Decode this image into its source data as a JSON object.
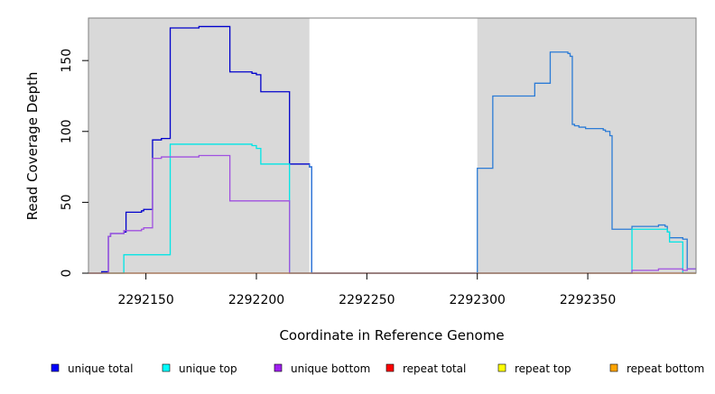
{
  "chart_data": {
    "type": "line",
    "title": "",
    "xlabel": "Coordinate in Reference Genome",
    "ylabel": "Read Coverage Depth",
    "xlim": [
      2292124,
      2292399
    ],
    "ylim": [
      0,
      180
    ],
    "x_ticks": [
      2292150,
      2292200,
      2292250,
      2292300,
      2292350
    ],
    "x_tick_labels": [
      "2292150",
      "2292200",
      "2292250",
      "2292300",
      "2292350"
    ],
    "y_ticks": [
      0,
      50,
      100,
      150
    ],
    "y_tick_labels": [
      "0",
      "50",
      "100",
      "150"
    ],
    "grid": false,
    "shaded_regions": [
      {
        "x_start": 2292124,
        "x_end": 2292224,
        "color": "#d9d9d9"
      },
      {
        "x_start": 2292300,
        "x_end": 2292399,
        "color": "#d9d9d9"
      }
    ],
    "legend": {
      "placement": "bottom",
      "entries": [
        {
          "label": "unique total",
          "color": "#0000ff"
        },
        {
          "label": "unique top",
          "color": "#00ffff"
        },
        {
          "label": "unique bottom",
          "color": "#a020f0"
        },
        {
          "label": "repeat total",
          "color": "#ff0000"
        },
        {
          "label": "repeat top",
          "color": "#ffff00"
        },
        {
          "label": "repeat bottom",
          "color": "#ffa500"
        }
      ]
    },
    "series": [
      {
        "name": "unique total",
        "color": "#0000cc",
        "points": [
          [
            2292124,
            0
          ],
          [
            2292130,
            0
          ],
          [
            2292130,
            1
          ],
          [
            2292133,
            1
          ],
          [
            2292133,
            26
          ],
          [
            2292134,
            26
          ],
          [
            2292134,
            28
          ],
          [
            2292140,
            28
          ],
          [
            2292140,
            29
          ],
          [
            2292141,
            29
          ],
          [
            2292141,
            43
          ],
          [
            2292148,
            43
          ],
          [
            2292148,
            44
          ],
          [
            2292149,
            44
          ],
          [
            2292149,
            45
          ],
          [
            2292153,
            45
          ],
          [
            2292153,
            94
          ],
          [
            2292157,
            94
          ],
          [
            2292157,
            95
          ],
          [
            2292161,
            95
          ],
          [
            2292161,
            173
          ],
          [
            2292174,
            173
          ],
          [
            2292174,
            174
          ],
          [
            2292188,
            174
          ],
          [
            2292188,
            142
          ],
          [
            2292198,
            142
          ],
          [
            2292198,
            141
          ],
          [
            2292200,
            141
          ],
          [
            2292200,
            140
          ],
          [
            2292202,
            140
          ],
          [
            2292202,
            128
          ],
          [
            2292215,
            128
          ],
          [
            2292215,
            77
          ],
          [
            2292224,
            77
          ],
          [
            2292224,
            75
          ],
          [
            2292225,
            75
          ],
          [
            2292225,
            0
          ],
          [
            2292300,
            0
          ]
        ]
      },
      {
        "name": "",
        "color": "#2b7bd6",
        "points": [
          [
            2292224,
            77
          ],
          [
            2292224,
            75
          ],
          [
            2292225,
            75
          ],
          [
            2292225,
            0
          ],
          [
            2292300,
            0
          ],
          [
            2292300,
            74
          ],
          [
            2292307,
            74
          ],
          [
            2292307,
            125
          ],
          [
            2292326,
            125
          ],
          [
            2292326,
            134
          ],
          [
            2292333,
            134
          ],
          [
            2292333,
            156
          ],
          [
            2292341,
            156
          ],
          [
            2292341,
            155
          ],
          [
            2292342,
            155
          ],
          [
            2292342,
            153
          ],
          [
            2292343,
            153
          ],
          [
            2292343,
            105
          ],
          [
            2292344,
            105
          ],
          [
            2292344,
            104
          ],
          [
            2292346,
            104
          ],
          [
            2292346,
            103
          ],
          [
            2292349,
            103
          ],
          [
            2292349,
            102
          ],
          [
            2292357,
            102
          ],
          [
            2292357,
            101
          ],
          [
            2292358,
            101
          ],
          [
            2292358,
            100
          ],
          [
            2292360,
            100
          ],
          [
            2292360,
            97
          ],
          [
            2292361,
            97
          ],
          [
            2292361,
            31
          ],
          [
            2292370,
            31
          ],
          [
            2292370,
            33
          ],
          [
            2292382,
            33
          ],
          [
            2292382,
            34
          ],
          [
            2292385,
            34
          ],
          [
            2292385,
            33
          ],
          [
            2292386,
            33
          ],
          [
            2292386,
            29
          ],
          [
            2292387,
            29
          ],
          [
            2292387,
            25
          ],
          [
            2292393,
            25
          ],
          [
            2292393,
            24
          ],
          [
            2292395,
            24
          ],
          [
            2292395,
            3
          ],
          [
            2292399,
            3
          ]
        ]
      },
      {
        "name": "unique top",
        "color": "#00e5e5",
        "points": [
          [
            2292124,
            0
          ],
          [
            2292140,
            0
          ],
          [
            2292140,
            13
          ],
          [
            2292161,
            13
          ],
          [
            2292161,
            91
          ],
          [
            2292198,
            91
          ],
          [
            2292198,
            90
          ],
          [
            2292200,
            90
          ],
          [
            2292200,
            88
          ],
          [
            2292202,
            88
          ],
          [
            2292202,
            77
          ],
          [
            2292215,
            77
          ],
          [
            2292215,
            0
          ],
          [
            2292300,
            0
          ],
          [
            2292300,
            0
          ],
          [
            2292370,
            0
          ],
          [
            2292370,
            31
          ],
          [
            2292386,
            31
          ],
          [
            2292386,
            29
          ],
          [
            2292387,
            29
          ],
          [
            2292387,
            22
          ],
          [
            2292393,
            22
          ],
          [
            2292393,
            0
          ],
          [
            2292399,
            0
          ]
        ]
      },
      {
        "name": "unique bottom",
        "color": "#a050e0",
        "points": [
          [
            2292124,
            0
          ],
          [
            2292133,
            0
          ],
          [
            2292133,
            26
          ],
          [
            2292134,
            26
          ],
          [
            2292134,
            28
          ],
          [
            2292140,
            28
          ],
          [
            2292140,
            30
          ],
          [
            2292148,
            30
          ],
          [
            2292148,
            31
          ],
          [
            2292149,
            31
          ],
          [
            2292149,
            32
          ],
          [
            2292153,
            32
          ],
          [
            2292153,
            81
          ],
          [
            2292157,
            81
          ],
          [
            2292157,
            82
          ],
          [
            2292174,
            82
          ],
          [
            2292174,
            83
          ],
          [
            2292188,
            83
          ],
          [
            2292188,
            51
          ],
          [
            2292215,
            51
          ],
          [
            2292215,
            0
          ],
          [
            2292300,
            0
          ],
          [
            2292370,
            0
          ],
          [
            2292370,
            2
          ],
          [
            2292382,
            2
          ],
          [
            2292382,
            3
          ],
          [
            2292393,
            3
          ],
          [
            2292393,
            2
          ],
          [
            2292395,
            2
          ],
          [
            2292395,
            3
          ],
          [
            2292399,
            3
          ]
        ]
      },
      {
        "name": "repeat total",
        "color": "#ff0000",
        "points": [
          [
            2292124,
            0
          ],
          [
            2292399,
            0
          ]
        ]
      },
      {
        "name": "repeat bottom",
        "color": "#ffa500",
        "points": [
          [
            2292124,
            0
          ],
          [
            2292224,
            0
          ],
          [
            2292300,
            0
          ],
          [
            2292399,
            0
          ]
        ]
      }
    ]
  }
}
